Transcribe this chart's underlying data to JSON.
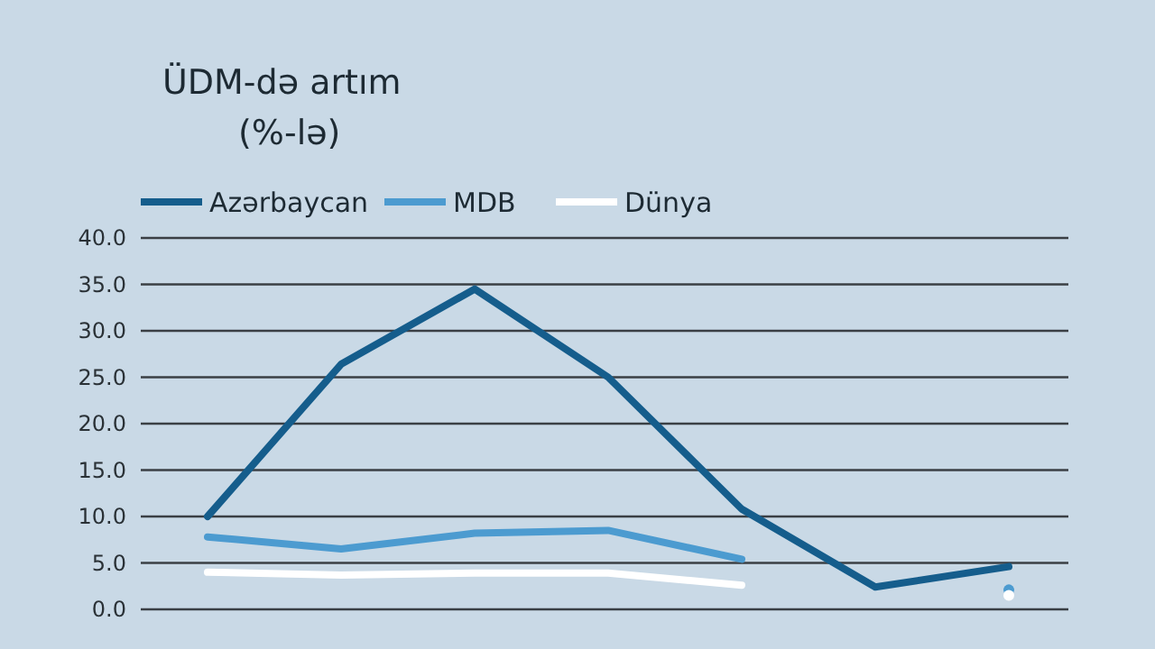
{
  "chart_data": {
    "type": "line",
    "title": "ÜDM-də artım",
    "subtitle": "(%-lə)",
    "categories": [
      null,
      null,
      null,
      null,
      null,
      null,
      null
    ],
    "series": [
      {
        "name": "Azərbaycan",
        "color": "#155d8c",
        "values": [
          10.0,
          26.4,
          34.5,
          25.0,
          10.8,
          2.4,
          4.6
        ]
      },
      {
        "name": "MDB",
        "color": "#4c9bd0",
        "values": [
          7.8,
          6.5,
          8.2,
          8.5,
          5.4,
          null,
          2.1
        ]
      },
      {
        "name": "Dünya",
        "color": "#ffffff",
        "values": [
          4.0,
          3.7,
          3.9,
          3.9,
          2.6,
          null,
          1.5
        ]
      }
    ],
    "ylim": [
      0,
      40
    ],
    "yticks": [
      {
        "value": 0,
        "label": "0.0"
      },
      {
        "value": 5,
        "label": "5.0"
      },
      {
        "value": 10,
        "label": "10.0"
      },
      {
        "value": 15,
        "label": "15.0"
      },
      {
        "value": 20,
        "label": "20.0"
      },
      {
        "value": 25,
        "label": "25.0"
      },
      {
        "value": 30,
        "label": "30.0"
      },
      {
        "value": 35,
        "label": "35.0"
      },
      {
        "value": 40,
        "label": "40.0"
      }
    ],
    "grid": "y",
    "legend": "top left",
    "line_style": "solid",
    "marker": "none"
  }
}
